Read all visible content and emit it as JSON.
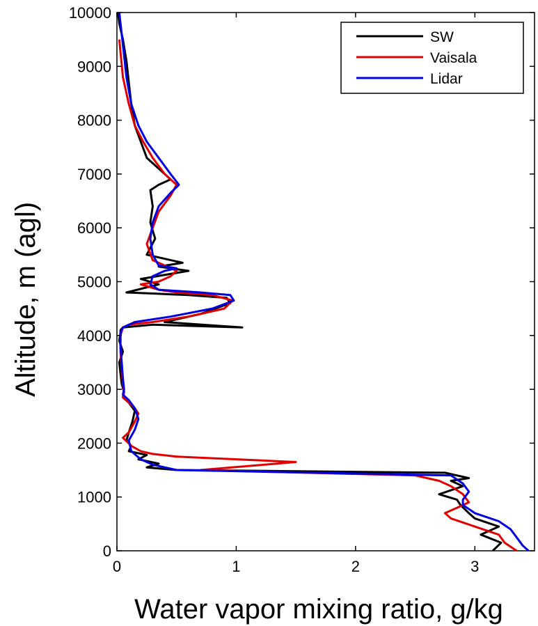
{
  "chart_data": {
    "type": "line",
    "title": "",
    "xlabel": "Water vapor mixing ratio, g/kg",
    "ylabel": "Altitude, m (agl)",
    "xlim": [
      0,
      3.5
    ],
    "ylim": [
      0,
      10000
    ],
    "xticks": [
      0,
      1,
      2,
      3
    ],
    "yticks": [
      0,
      1000,
      2000,
      3000,
      4000,
      5000,
      6000,
      7000,
      8000,
      9000,
      10000
    ],
    "grid": false,
    "legend": "top-right",
    "series": [
      {
        "name": "SW",
        "color": "#000000",
        "x": [
          3.15,
          3.22,
          3.05,
          3.2,
          3.0,
          2.95,
          2.88,
          2.85,
          2.7,
          2.9,
          2.8,
          2.95,
          2.85,
          2.75,
          0.5,
          0.25,
          0.35,
          0.18,
          0.25,
          0.1,
          0.12,
          0.08,
          0.1,
          0.13,
          0.15,
          0.1,
          0.05,
          0.06,
          0.04,
          0.03,
          0.02,
          0.05,
          0.02,
          0.03,
          0.03,
          0.05,
          0.3,
          1.05,
          0.4,
          0.7,
          0.95,
          0.92,
          0.6,
          0.3,
          0.08,
          0.35,
          0.2,
          0.6,
          0.35,
          0.55,
          0.25,
          0.32,
          0.28,
          0.3,
          0.28,
          0.35,
          0.45,
          0.4,
          0.25,
          0.2,
          0.15,
          0.12,
          0.1,
          0.08,
          0.05,
          0.02,
          0.01
        ],
        "y": [
          0,
          150,
          300,
          450,
          600,
          700,
          850,
          950,
          1050,
          1200,
          1300,
          1350,
          1400,
          1450,
          1500,
          1550,
          1620,
          1700,
          1780,
          1850,
          1950,
          2050,
          2200,
          2400,
          2600,
          2750,
          2850,
          2950,
          3100,
          3300,
          3500,
          3700,
          3900,
          4050,
          4100,
          4150,
          4200,
          4150,
          4250,
          4400,
          4600,
          4700,
          4750,
          4780,
          4800,
          4950,
          5050,
          5200,
          5280,
          5350,
          5500,
          5800,
          6100,
          6400,
          6700,
          6800,
          6900,
          7000,
          7300,
          7600,
          7900,
          8300,
          8700,
          9100,
          9500,
          9800,
          10000
        ]
      },
      {
        "name": "Vaisala",
        "color": "#e00000",
        "x": [
          3.35,
          3.25,
          3.2,
          3.0,
          2.8,
          2.75,
          2.85,
          2.95,
          2.9,
          2.8,
          2.7,
          2.5,
          0.7,
          1.5,
          1.0,
          0.5,
          0.3,
          0.2,
          0.12,
          0.05,
          0.1,
          0.15,
          0.18,
          0.15,
          0.1,
          0.05,
          0.06,
          0.05,
          0.04,
          0.03,
          0.03,
          0.05,
          0.1,
          0.3,
          0.6,
          0.9,
          0.97,
          0.8,
          0.5,
          0.35,
          0.2,
          0.35,
          0.45,
          0.5,
          0.4,
          0.3,
          0.25,
          0.3,
          0.35,
          0.45,
          0.5,
          0.4,
          0.3,
          0.22,
          0.15,
          0.1,
          0.05,
          0.02
        ],
        "y": [
          0,
          150,
          300,
          450,
          600,
          700,
          800,
          900,
          1050,
          1200,
          1300,
          1400,
          1500,
          1650,
          1700,
          1750,
          1800,
          1850,
          1950,
          2100,
          2200,
          2400,
          2550,
          2650,
          2750,
          2850,
          2950,
          3100,
          3400,
          3700,
          4000,
          4150,
          4200,
          4250,
          4350,
          4500,
          4650,
          4750,
          4800,
          4850,
          4950,
          5000,
          5100,
          5200,
          5300,
          5400,
          5700,
          6000,
          6300,
          6600,
          6800,
          7000,
          7300,
          7600,
          7900,
          8300,
          8800,
          9500
        ]
      },
      {
        "name": "Lidar",
        "color": "#0000e0",
        "x": [
          3.45,
          3.4,
          3.35,
          3.3,
          3.2,
          3.0,
          2.9,
          2.9,
          2.95,
          2.9,
          2.8,
          0.5,
          0.3,
          0.2,
          0.12,
          0.1,
          0.15,
          0.18,
          0.15,
          0.1,
          0.05,
          0.06,
          0.05,
          0.04,
          0.03,
          0.03,
          0.05,
          0.15,
          0.45,
          0.8,
          0.98,
          0.95,
          0.7,
          0.35,
          0.28,
          0.3,
          0.4,
          0.5,
          0.35,
          0.3,
          0.28,
          0.3,
          0.35,
          0.45,
          0.52,
          0.45,
          0.35,
          0.25,
          0.18,
          0.12,
          0.08,
          0.05,
          0.02
        ],
        "y": [
          0,
          100,
          250,
          400,
          550,
          700,
          850,
          950,
          1100,
          1250,
          1400,
          1500,
          1600,
          1700,
          1850,
          2050,
          2250,
          2450,
          2650,
          2800,
          2900,
          3000,
          3200,
          3500,
          3800,
          4050,
          4150,
          4250,
          4350,
          4500,
          4650,
          4750,
          4800,
          4850,
          4950,
          5100,
          5200,
          5250,
          5300,
          5500,
          5800,
          6100,
          6400,
          6650,
          6800,
          7000,
          7300,
          7600,
          7900,
          8300,
          8800,
          9400,
          10000
        ]
      }
    ]
  }
}
